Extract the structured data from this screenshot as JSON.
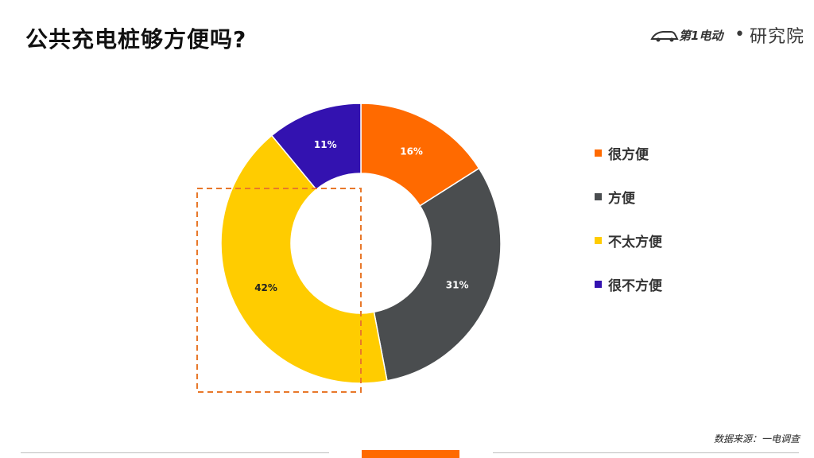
{
  "header": {
    "title": "公共充电桩够方便吗?",
    "brand_logo_text": "第1电动",
    "brand_separator": "•",
    "brand_name": "研究院"
  },
  "colors": {
    "accent": "#ff6a00",
    "slice_1": "#ff6a00",
    "slice_2": "#4a4d4f",
    "slice_3": "#ffcc00",
    "slice_4": "#3312b0",
    "highlight_box": "#e8782a"
  },
  "chart_data": {
    "type": "pie",
    "donut": true,
    "categories": [
      "很方便",
      "方便",
      "不太方便",
      "很不方便"
    ],
    "values": [
      16,
      31,
      42,
      11
    ],
    "data_labels": [
      "16%",
      "31%",
      "42%",
      "11%"
    ],
    "unit": "%",
    "legend_placement": "right",
    "highlighted_category": "不太方便"
  },
  "footer": {
    "source": "数据来源：一电调查"
  }
}
